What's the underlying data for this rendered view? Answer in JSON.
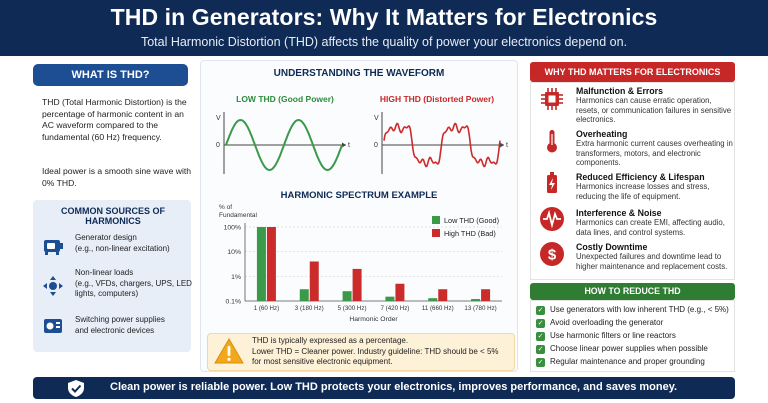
{
  "header": {
    "title": "THD in Generators: Why It Matters for Electronics",
    "subtitle": "Total Harmonic Distortion (THD) affects the quality of power your electronics depend on."
  },
  "what_is": {
    "title": "WHAT IS THD?",
    "body": "THD (Total Harmonic Distortion) is the percentage of harmonic content in an AC waveform compared to the fundamental (60 Hz) frequency.",
    "ideal": "Ideal power is a smooth sine wave with 0% THD."
  },
  "sources": {
    "title": "COMMON SOURCES OF HARMONICS",
    "items": [
      {
        "icon": "generator-icon",
        "label": "Generator design",
        "detail": "(e.g., non-linear excitation)"
      },
      {
        "icon": "nonlinear-load-icon",
        "label": "Non-linear loads",
        "detail": "(e.g., VFDs, chargers, UPS, LED lights, computers)"
      },
      {
        "icon": "power-supply-icon",
        "label": "Switching power supplies",
        "detail": "and electronic devices"
      }
    ]
  },
  "waveform": {
    "title": "UNDERSTANDING THE WAVEFORM",
    "low_label": "LOW THD (Good Power)",
    "high_label": "HIGH THD (Distorted Power)",
    "axis_v": "V",
    "axis_t": "t",
    "axis_zero": "0"
  },
  "chart_data": {
    "type": "bar",
    "title": "HARMONIC SPECTRUM EXAMPLE",
    "ylabel": "% of Fundamental",
    "xlabel": "Harmonic Order",
    "yscale": "log",
    "ylim": [
      0.1,
      100
    ],
    "yticks": [
      "100%",
      "10%",
      "1%",
      "0.1%"
    ],
    "categories": [
      "1 (60 Hz)",
      "3 (180 Hz)",
      "5 (300 Hz)",
      "7 (420 Hz)",
      "11 (660 Hz)",
      "13 (780 Hz)"
    ],
    "series": [
      {
        "name": "Low THD (Good)",
        "color": "#3a9a4a",
        "values": [
          100,
          0.3,
          0.25,
          0.15,
          0.13,
          0.12
        ]
      },
      {
        "name": "High THD (Bad)",
        "color": "#cc2b2b",
        "values": [
          100,
          4,
          2,
          0.5,
          0.3,
          0.3
        ]
      }
    ],
    "legend_position": "top-right",
    "grid": true
  },
  "note": {
    "icon": "warning-icon",
    "line1": "THD is typically expressed as a percentage.",
    "line2": "Lower THD = Cleaner power.  Industry guideline: THD should be < 5%",
    "line3": "for most sensitive electronic equipment."
  },
  "why": {
    "title": "WHY THD MATTERS FOR ELECTRONICS",
    "items": [
      {
        "icon": "chip-icon",
        "heading": "Malfunction & Errors",
        "desc": "Harmonics can cause erratic operation, resets, or communication failures in sensitive electronics."
      },
      {
        "icon": "thermometer-icon",
        "heading": "Overheating",
        "desc": "Extra harmonic current causes overheating in transformers, motors, and electronic components."
      },
      {
        "icon": "battery-icon",
        "heading": "Reduced Efficiency & Lifespan",
        "desc": "Harmonics increase losses and stress, reducing the life of equipment."
      },
      {
        "icon": "interference-icon",
        "heading": "Interference & Noise",
        "desc": "Harmonics can create EMI, affecting audio, data lines, and control systems."
      },
      {
        "icon": "dollar-icon",
        "heading": "Costly Downtime",
        "desc": "Unexpected failures and downtime lead to higher maintenance and replacement costs."
      }
    ]
  },
  "reduce": {
    "title": "HOW TO REDUCE THD",
    "items": [
      "Use generators with low inherent THD (e.g., < 5%)",
      "Avoid overloading the generator",
      "Use harmonic filters or line reactors",
      "Choose linear power supplies when possible",
      "Regular maintenance and proper grounding"
    ]
  },
  "footer": {
    "icon": "shield-icon",
    "text": "Clean power is reliable power.  Low THD protects your electronics, improves performance, and saves money."
  },
  "colors": {
    "navy": "#0e2a55",
    "blue": "#1d4d92",
    "red": "#c62828",
    "green": "#2e7d32",
    "note_bg": "#fdf1d8"
  }
}
